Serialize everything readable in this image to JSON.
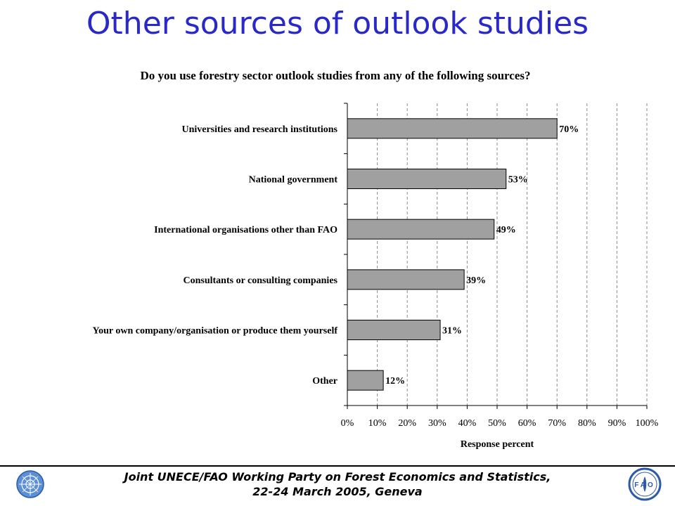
{
  "slide": {
    "title": "Other sources of outlook studies"
  },
  "chart_data": {
    "type": "bar",
    "orientation": "horizontal",
    "title": "Do you use forestry sector outlook studies from any of the following sources?",
    "xlabel": "Response percent",
    "ylabel": "",
    "categories": [
      "Universities and research institutions",
      "National government",
      "International organisations other than FAO",
      "Consultants or consulting companies",
      "Your own company/organisation or produce them yourself",
      "Other"
    ],
    "values": [
      70,
      53,
      49,
      39,
      31,
      12
    ],
    "value_labels": [
      "70%",
      "53%",
      "49%",
      "39%",
      "31%",
      "12%"
    ],
    "xlim": [
      0,
      100
    ],
    "xticks": [
      "0%",
      "10%",
      "20%",
      "30%",
      "40%",
      "50%",
      "60%",
      "70%",
      "80%",
      "90%",
      "100%"
    ],
    "grid": "vertical dashed",
    "bar_color": "#a0a0a0"
  },
  "footer": {
    "line1": "Joint UNECE/FAO Working Party on Forest Economics and Statistics,",
    "line2": "22-24 March 2005, Geneva"
  },
  "logos": {
    "left": "un-emblem-icon",
    "right": "fao-emblem-icon",
    "right_letters": "FAO"
  }
}
